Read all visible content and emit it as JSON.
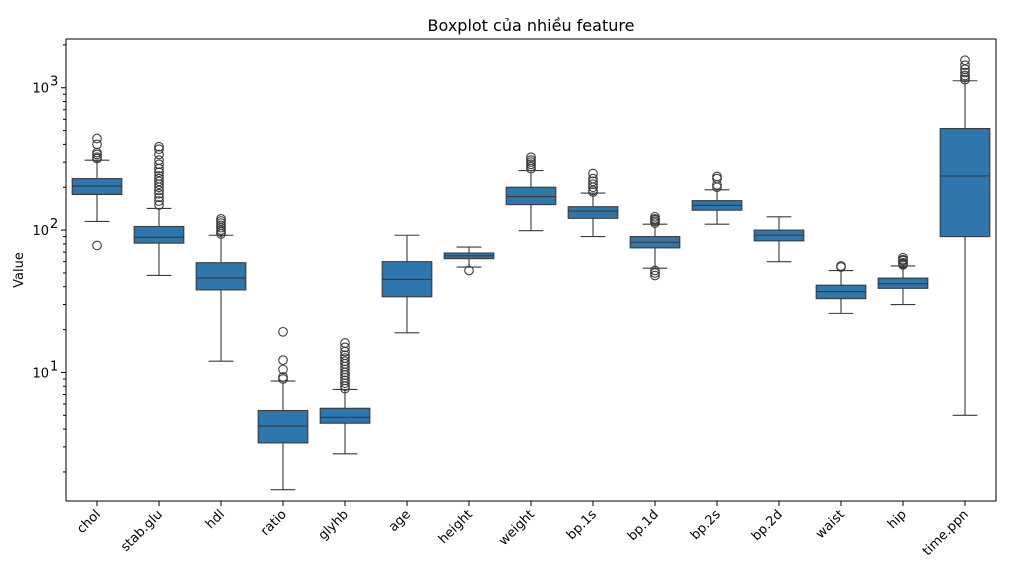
{
  "chart_data": {
    "type": "boxplot",
    "title": "Boxplot của nhiều feature",
    "ylabel": "Value",
    "xlabel": "",
    "yscale": "log",
    "ylim": [
      1.25,
      2200
    ],
    "grid": false,
    "box_color": "#2f76ad",
    "line_color": "#3a3a3a",
    "y_ticks": [
      {
        "value": 10,
        "label": "10"
      },
      {
        "value": 100,
        "label": "10"
      },
      {
        "value": 1000,
        "label": "10"
      }
    ],
    "y_tick_exponents": [
      "1",
      "2",
      "3"
    ],
    "categories": [
      "chol",
      "stab.glu",
      "hdl",
      "ratio",
      "glyhb",
      "age",
      "height",
      "weight",
      "bp.1s",
      "bp.1d",
      "bp.2s",
      "bp.2d",
      "waist",
      "hip",
      "time.ppn"
    ],
    "boxes": [
      {
        "label": "chol",
        "whislo": 115,
        "q1": 178,
        "med": 204,
        "q3": 230,
        "whishi": 310,
        "fliers": [
          78,
          318,
          325,
          340,
          350,
          400,
          440
        ]
      },
      {
        "label": "stab.glu",
        "whislo": 48,
        "q1": 81,
        "med": 89,
        "q3": 106,
        "whishi": 142,
        "fliers": [
          150,
          160,
          170,
          180,
          190,
          200,
          210,
          220,
          230,
          240,
          255,
          270,
          290,
          310,
          340,
          370,
          385
        ]
      },
      {
        "label": "hdl",
        "whislo": 12,
        "q1": 38,
        "med": 46,
        "q3": 59,
        "whishi": 92,
        "fliers": [
          94,
          97,
          100,
          104,
          108,
          112,
          116,
          120
        ]
      },
      {
        "label": "ratio",
        "whislo": 1.5,
        "q1": 3.2,
        "med": 4.2,
        "q3": 5.4,
        "whishi": 8.7,
        "fliers": [
          9.0,
          9.3,
          10.5,
          12.2,
          19.3
        ]
      },
      {
        "label": "glyhb",
        "whislo": 2.68,
        "q1": 4.4,
        "med": 4.84,
        "q3": 5.6,
        "whishi": 7.6,
        "fliers": [
          7.7,
          8.0,
          8.4,
          8.8,
          9.2,
          9.6,
          10.0,
          10.5,
          11.0,
          11.5,
          12.0,
          12.6,
          13.2,
          14.0,
          15.0,
          16.1
        ]
      },
      {
        "label": "age",
        "whislo": 19,
        "q1": 34,
        "med": 45,
        "q3": 60,
        "whishi": 92,
        "fliers": []
      },
      {
        "label": "height",
        "whislo": 55,
        "q1": 63,
        "med": 66,
        "q3": 69,
        "whishi": 76,
        "fliers": [
          52
        ]
      },
      {
        "label": "weight",
        "whislo": 99,
        "q1": 151,
        "med": 172,
        "q3": 200,
        "whishi": 262,
        "fliers": [
          270,
          280,
          290,
          300,
          310,
          325
        ]
      },
      {
        "label": "bp.1s",
        "whislo": 90,
        "q1": 121,
        "med": 136,
        "q3": 146,
        "whishi": 182,
        "fliers": [
          185,
          190,
          200,
          210,
          220,
          230,
          250
        ]
      },
      {
        "label": "bp.1d",
        "whislo": 54,
        "q1": 75,
        "med": 82,
        "q3": 90,
        "whishi": 110,
        "fliers": [
          48,
          50,
          52,
          112,
          115,
          118,
          120,
          124
        ]
      },
      {
        "label": "bp.2s",
        "whislo": 110,
        "q1": 138,
        "med": 149,
        "q3": 161,
        "whishi": 192,
        "fliers": [
          200,
          208,
          230,
          238
        ]
      },
      {
        "label": "bp.2d",
        "whislo": 60,
        "q1": 84,
        "med": 92,
        "q3": 100,
        "whishi": 124,
        "fliers": []
      },
      {
        "label": "waist",
        "whislo": 26,
        "q1": 33,
        "med": 37,
        "q3": 41,
        "whishi": 52,
        "fliers": [
          55,
          56
        ]
      },
      {
        "label": "hip",
        "whislo": 30,
        "q1": 39,
        "med": 42,
        "q3": 46,
        "whishi": 56,
        "fliers": [
          57,
          58,
          59,
          61,
          62,
          64
        ]
      },
      {
        "label": "time.ppn",
        "whislo": 5,
        "q1": 90,
        "med": 240,
        "q3": 517,
        "whishi": 1120,
        "fliers": [
          1140,
          1180,
          1220,
          1280,
          1350,
          1440,
          1560
        ]
      }
    ]
  }
}
